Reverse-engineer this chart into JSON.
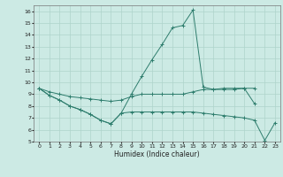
{
  "line_color": "#2e7d6d",
  "bg_color": "#cceae4",
  "grid_color": "#aed4cb",
  "xlabel": "Humidex (Indice chaleur)",
  "xlim": [
    -0.5,
    23.5
  ],
  "ylim": [
    5,
    16.5
  ],
  "yticks": [
    5,
    6,
    7,
    8,
    9,
    10,
    11,
    12,
    13,
    14,
    15,
    16
  ],
  "xticks": [
    0,
    1,
    2,
    3,
    4,
    5,
    6,
    7,
    8,
    9,
    10,
    11,
    12,
    13,
    14,
    15,
    16,
    17,
    18,
    19,
    20,
    21,
    22,
    23
  ],
  "top_x": [
    0,
    1,
    2,
    3,
    4,
    5,
    6,
    7,
    8,
    9,
    10,
    11,
    12,
    13,
    14,
    15,
    16,
    17,
    18,
    19,
    20,
    21
  ],
  "top_y": [
    9.5,
    8.9,
    8.5,
    8.0,
    7.7,
    7.3,
    6.8,
    6.5,
    7.4,
    9.0,
    10.5,
    11.9,
    13.2,
    14.6,
    14.8,
    16.1,
    9.6,
    9.4,
    9.5,
    9.5,
    9.5,
    8.2
  ],
  "mid_x": [
    0,
    1,
    2,
    3,
    4,
    5,
    6,
    7,
    8,
    9,
    10,
    11,
    12,
    13,
    14,
    15,
    16,
    17,
    18,
    19,
    20,
    21
  ],
  "mid_y": [
    9.5,
    9.2,
    9.0,
    8.8,
    8.7,
    8.6,
    8.5,
    8.4,
    8.5,
    8.8,
    9.0,
    9.0,
    9.0,
    9.0,
    9.0,
    9.2,
    9.4,
    9.4,
    9.4,
    9.4,
    9.5,
    9.5
  ],
  "bot_x": [
    0,
    1,
    2,
    3,
    4,
    5,
    6,
    7,
    8,
    9,
    10,
    11,
    12,
    13,
    14,
    15,
    16,
    17,
    18,
    19,
    20,
    21,
    22,
    23
  ],
  "bot_y": [
    9.5,
    8.9,
    8.5,
    8.0,
    7.7,
    7.3,
    6.8,
    6.5,
    7.4,
    7.5,
    7.5,
    7.5,
    7.5,
    7.5,
    7.5,
    7.5,
    7.4,
    7.3,
    7.2,
    7.1,
    7.0,
    6.8,
    5.1,
    6.6
  ]
}
